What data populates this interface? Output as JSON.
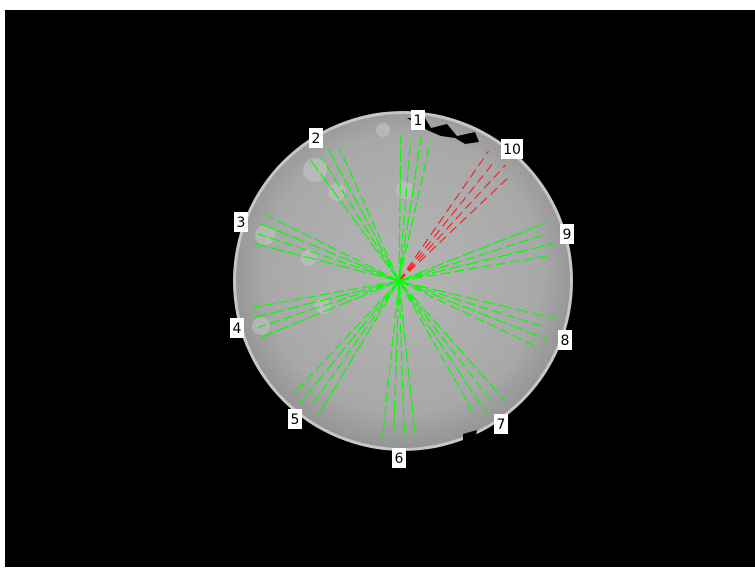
{
  "colors": {
    "background": "#000000",
    "disk_gray": "#a9a9a9",
    "ray_green": "#00ff00",
    "ray_highlight": "#ff2020",
    "label_bg": "#ffffff",
    "label_text": "#000000"
  },
  "rays": [
    {
      "label": "1",
      "highlighted": false
    },
    {
      "label": "2",
      "highlighted": false
    },
    {
      "label": "3",
      "highlighted": false
    },
    {
      "label": "4",
      "highlighted": false
    },
    {
      "label": "5",
      "highlighted": false
    },
    {
      "label": "6",
      "highlighted": false
    },
    {
      "label": "7",
      "highlighted": false
    },
    {
      "label": "8",
      "highlighted": false
    },
    {
      "label": "9",
      "highlighted": false
    },
    {
      "label": "10",
      "highlighted": true
    }
  ]
}
